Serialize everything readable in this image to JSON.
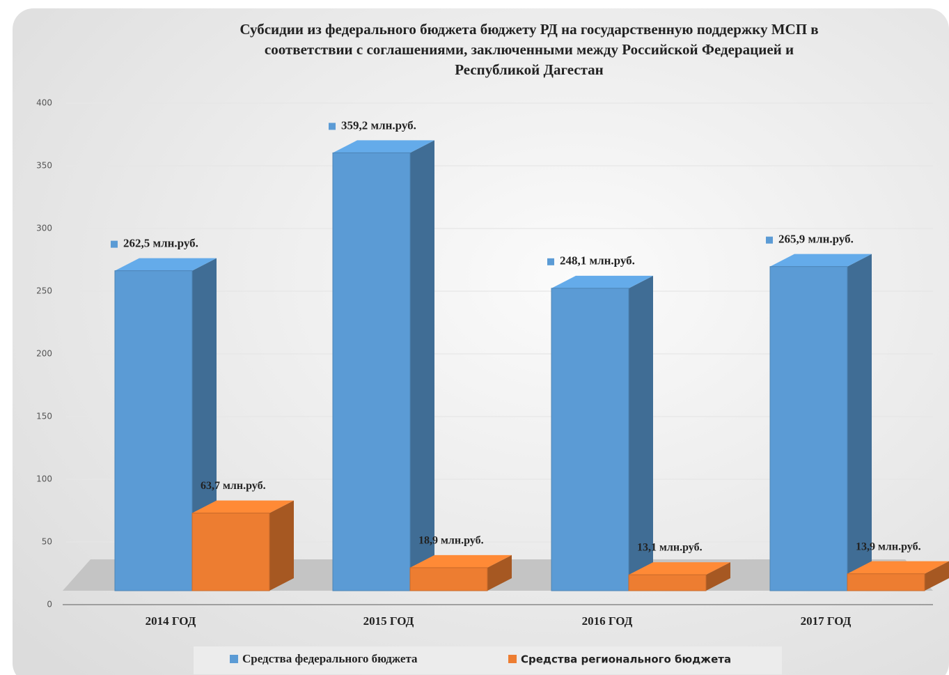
{
  "chart_data": {
    "type": "bar3d",
    "title": "Субсидии из федерального бюджета бюджету РД на государственную поддержку МСП в соответствии с соглашениями, заключенными между Российской Федерацией и Республикой Дагестан",
    "categories": [
      "2014 ГОД",
      "2015 ГОД",
      "2016 ГОД",
      "2017 ГОД"
    ],
    "series": [
      {
        "name": "Средства федерального бюджета",
        "color": "#5b9bd5",
        "values": [
          262.5,
          359.2,
          248.1,
          265.9
        ],
        "value_labels": [
          "262,5 млн.руб.",
          "359,2 млн.руб.",
          "248,1 млн.руб.",
          "265,9 млн.руб."
        ]
      },
      {
        "name": "Средства регионального бюджета",
        "color": "#ed7d31",
        "values": [
          63.7,
          18.9,
          13.1,
          13.9
        ],
        "value_labels": [
          "63,7 млн.руб.",
          "18,9 млн.руб.",
          "13,1 млн.руб.",
          "13,9 млн.руб."
        ]
      }
    ],
    "ylim": [
      0,
      400
    ],
    "yticks": [
      0,
      50,
      100,
      150,
      200,
      250,
      300,
      350,
      400
    ],
    "grid": true,
    "legend": "bottom"
  }
}
